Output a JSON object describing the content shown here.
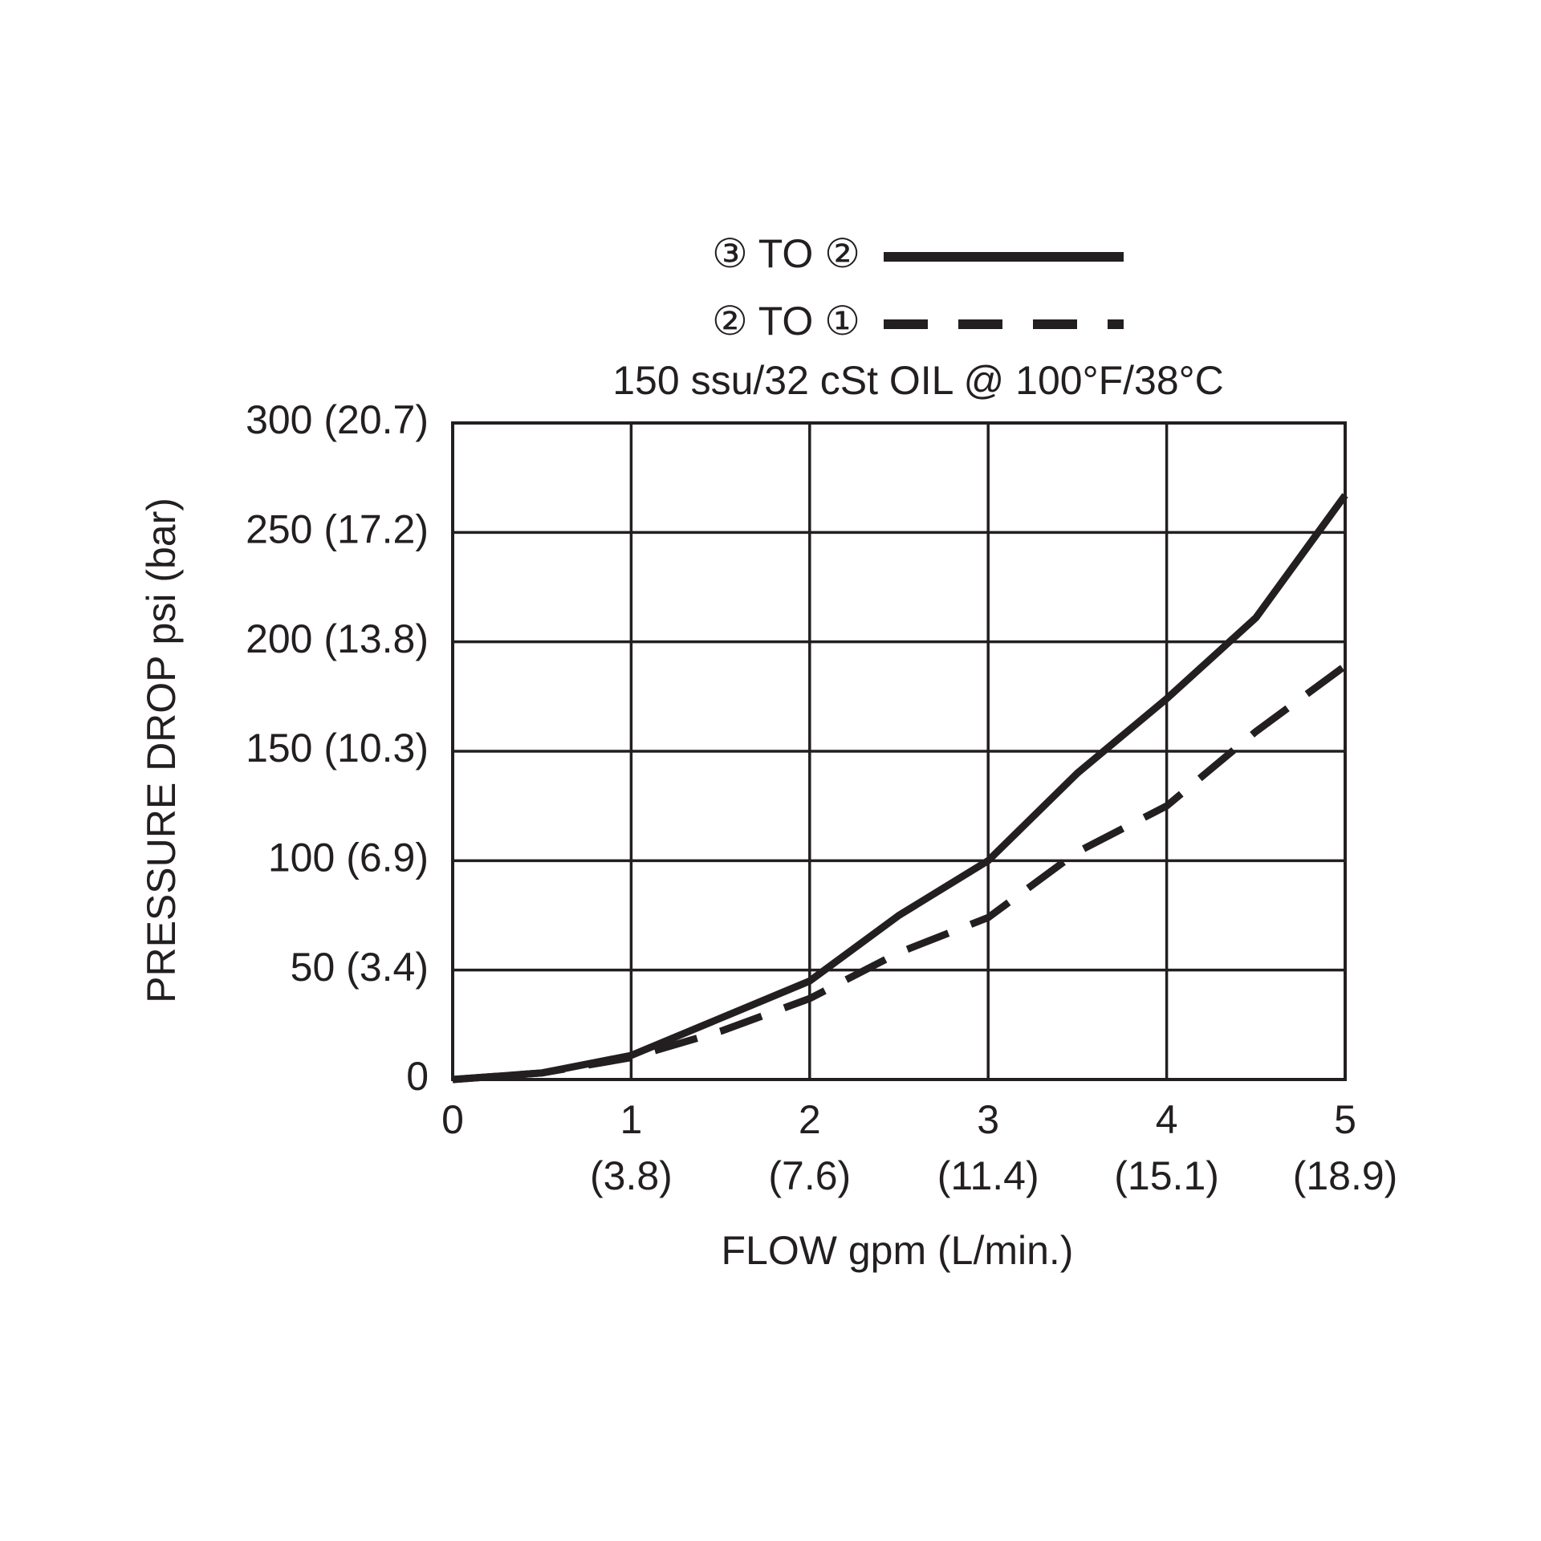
{
  "chart_data": {
    "type": "line",
    "subtitle": "150 ssu/32 cSt OIL @ 100°F/38°C",
    "x_label": "FLOW gpm (L/min.)",
    "y_label": "PRESSURE DROP psi (bar)",
    "x": [
      0,
      0.5,
      1,
      1.5,
      2,
      2.5,
      3,
      3.5,
      4,
      4.5,
      5
    ],
    "series": [
      {
        "name": "③ TO ②",
        "color": "#231f20",
        "dash": false,
        "values": [
          0,
          3,
          11,
          28,
          45,
          75,
          100,
          140,
          174,
          211,
          267
        ]
      },
      {
        "name": "② TO ①",
        "color": "#231f20",
        "dash": true,
        "values": [
          0,
          3,
          10,
          22,
          37,
          58,
          74,
          104,
          125,
          159,
          189
        ]
      }
    ],
    "xlim": [
      0,
      5
    ],
    "xticks": [
      {
        "value": 0,
        "label": "0"
      },
      {
        "value": 1,
        "label": "1\n(3.8)"
      },
      {
        "value": 2,
        "label": "2\n(7.6)"
      },
      {
        "value": 3,
        "label": "3\n(11.4)"
      },
      {
        "value": 4,
        "label": "4\n(15.1)"
      },
      {
        "value": 5,
        "label": "5\n(18.9)"
      }
    ],
    "ylim": [
      0,
      300
    ],
    "yticks": [
      0,
      {
        "value": 50,
        "label": "50 (3.4)"
      },
      {
        "value": 100,
        "label": "100 (6.9)"
      },
      {
        "value": 150,
        "label": "150 (10.3)"
      },
      {
        "value": 200,
        "label": "200 (13.8)"
      },
      {
        "value": 250,
        "label": "250 (17.2)"
      },
      {
        "value": 300,
        "label": "300 (20.7)"
      }
    ],
    "grid": true
  }
}
